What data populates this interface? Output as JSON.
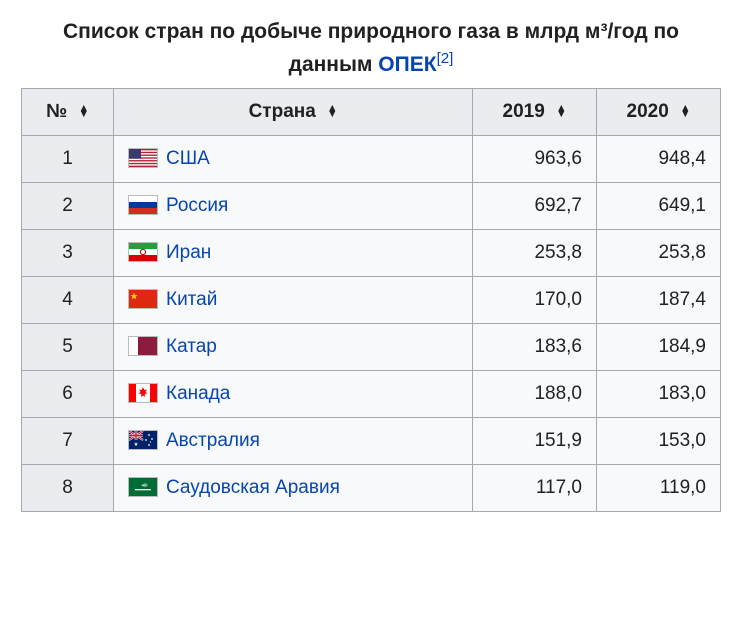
{
  "caption": {
    "prefix": "Список стран по добыче природного газа в млрд м³/год по данным ",
    "link_text": "ОПЕК",
    "ref": "[2]"
  },
  "columns": {
    "rank": "№",
    "country": "Страна",
    "y2019": "2019",
    "y2020": "2020"
  },
  "flags": {
    "usa": "<svg viewBox='0 0 28 18'><rect width='28' height='18' fill='#b22234'/><g fill='#fff'><rect y='1.38' width='28' height='1.385'/><rect y='4.15' width='28' height='1.385'/><rect y='6.92' width='28' height='1.385'/><rect y='9.69' width='28' height='1.385'/><rect y='12.46' width='28' height='1.385'/><rect y='15.23' width='28' height='1.385'/></g><rect width='12' height='9.7' fill='#3c3b6e'/></svg>",
    "russia": "<svg viewBox='0 0 28 18'><rect width='28' height='6' y='0' fill='#fff'/><rect width='28' height='6' y='6' fill='#0039a6'/><rect width='28' height='6' y='12' fill='#d52b1e'/></svg>",
    "iran": "<svg viewBox='0 0 28 18'><rect width='28' height='6' y='0' fill='#239f40'/><rect width='28' height='6' y='6' fill='#fff'/><rect width='28' height='6' y='12' fill='#da0000'/><circle cx='14' cy='9' r='2.6' fill='none' stroke='#da0000' stroke-width='1.1'/></svg>",
    "china": "<svg viewBox='0 0 28 18'><rect width='28' height='18' fill='#de2910'/><polygon points='5,2.5 5.9,5.1 8.6,5.1 6.4,6.8 7.2,9.4 5,7.8 2.8,9.4 3.6,6.8 1.4,5.1 4.1,5.1' fill='#ffde00'/></svg>",
    "qatar": "<svg viewBox='0 0 28 18'><rect width='28' height='18' fill='#8d1b3d'/><rect width='9' height='18' fill='#fff'/><polygon fill='#8d1b3d' points='9,0 12,1 9,2 12,3 9,4 12,5 9,6 12,7 9,8 12,9 9,10 12,11 9,12 12,13 9,14 12,15 9,16 12,17 9,18'/></svg>",
    "canada": "<svg viewBox='0 0 28 18'><rect width='28' height='18' fill='#fff'/><rect width='7' height='18' fill='#ff0000'/><rect x='21' width='7' height='18' fill='#ff0000'/><polygon fill='#ff0000' points='14,3 15.3,6 18,5.5 16.4,8 18.5,9.5 15.7,10 16,13 14,11.5 12,13 12.3,10 9.5,9.5 11.6,8 10,5.5 12.7,6'/></svg>",
    "australia": "<svg viewBox='0 0 28 18'><rect width='28' height='18' fill='#012169'/><rect width='14' height='9' fill='#012169'/><path d='M0,0 L14,9 M14,0 L0,9' stroke='#fff' stroke-width='2'/><path d='M0,0 L14,9 M14,0 L0,9' stroke='#c8102e' stroke-width='1'/><path d='M7,0 V9 M0,4.5 H14' stroke='#fff' stroke-width='2.6'/><path d='M7,0 V9 M0,4.5 H14' stroke='#c8102e' stroke-width='1.4'/><g fill='#fff'><polygon points='7,11 7.5,12.5 9,12.5 7.8,13.4 8.3,15 7,14 5.7,15 6.2,13.4 5,12.5 6.5,12.5'/><circle cx='20' cy='4' r='0.9'/><circle cx='23' cy='8' r='0.9'/><circle cx='20' cy='14' r='0.9'/><circle cx='17' cy='9' r='0.9'/><circle cx='21.5' cy='11' r='0.6'/></g></svg>",
    "saudi": "<svg viewBox='0 0 28 18'><rect width='28' height='18' fill='#006c35'/><rect x='6' y='11' width='16' height='1.3' fill='#fff'/><text x='14' y='8.5' font-size='5' fill='#fff' text-anchor='middle' font-family='Arial'>ﷲ</text></svg>"
  },
  "rows": [
    {
      "rank": "1",
      "flag": "usa",
      "name": "США",
      "y2019": "963,6",
      "y2020": "948,4"
    },
    {
      "rank": "2",
      "flag": "russia",
      "name": "Россия",
      "y2019": "692,7",
      "y2020": "649,1"
    },
    {
      "rank": "3",
      "flag": "iran",
      "name": "Иран",
      "y2019": "253,8",
      "y2020": "253,8"
    },
    {
      "rank": "4",
      "flag": "china",
      "name": "Китай",
      "y2019": "170,0",
      "y2020": "187,4"
    },
    {
      "rank": "5",
      "flag": "qatar",
      "name": "Катар",
      "y2019": "183,6",
      "y2020": "184,9"
    },
    {
      "rank": "6",
      "flag": "canada",
      "name": "Канада",
      "y2019": "188,0",
      "y2020": "183,0"
    },
    {
      "rank": "7",
      "flag": "australia",
      "name": "Австралия",
      "y2019": "151,9",
      "y2020": "153,0"
    },
    {
      "rank": "8",
      "flag": "saudi",
      "name": "Саудовская Аравия",
      "y2019": "117,0",
      "y2020": "119,0"
    }
  ]
}
